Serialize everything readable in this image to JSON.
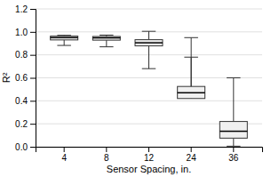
{
  "chart_data": {
    "type": "box",
    "xlabel": "Sensor Spacing, in.",
    "ylabel": "R²",
    "categories": [
      "4",
      "8",
      "12",
      "24",
      "36"
    ],
    "box_stats": [
      {
        "whislo": 0.882,
        "q1": 0.93,
        "med": 0.95,
        "q3": 0.963,
        "whishi": 0.97
      },
      {
        "whislo": 0.87,
        "q1": 0.928,
        "med": 0.948,
        "q3": 0.96,
        "whishi": 0.972
      },
      {
        "whislo": 0.68,
        "q1": 0.878,
        "med": 0.905,
        "q3": 0.932,
        "whishi": 1.005
      },
      {
        "whislo": 0.78,
        "q1": 0.42,
        "med": 0.47,
        "q3": 0.525,
        "whishi": 0.95
      },
      {
        "whislo": 0.005,
        "q1": 0.075,
        "med": 0.135,
        "q3": 0.22,
        "whishi": 0.6
      }
    ],
    "color": "#f0f0f0",
    "ylim": [
      0,
      1.2
    ],
    "yticks": [
      {
        "value": 0,
        "label": "0.0"
      },
      0.2,
      0.4,
      0.6,
      0.8,
      {
        "value": 1,
        "label": "1.0"
      },
      1.2
    ],
    "grid": true
  }
}
